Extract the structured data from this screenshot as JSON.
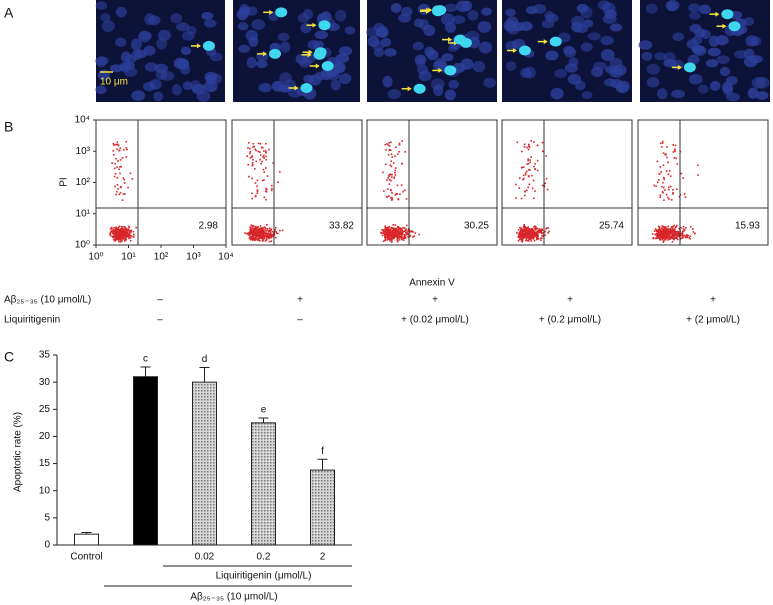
{
  "panel_a": {
    "label": "A",
    "scale_bar": "10 μm"
  },
  "panel_b": {
    "label": "B",
    "x_label": "Annexin V",
    "y_label": "PI",
    "log_scale": true,
    "xlim": [
      1,
      10000
    ],
    "ylim": [
      1,
      10000
    ],
    "xticks": [
      {
        "value": 1,
        "label": "10⁰"
      },
      {
        "value": 10,
        "label": "10¹"
      },
      {
        "value": 100,
        "label": "10²"
      },
      {
        "value": 1000,
        "label": "10³"
      },
      {
        "value": 10000,
        "label": "10⁴"
      }
    ],
    "yticks": [
      {
        "value": 1,
        "label": "10⁰"
      },
      {
        "value": 10,
        "label": "10¹"
      },
      {
        "value": 100,
        "label": "10²"
      },
      {
        "value": 1000,
        "label": "10³"
      },
      {
        "value": 10000,
        "label": "10⁴"
      }
    ],
    "quadrant_percentages": [
      2.98,
      33.82,
      30.25,
      25.74,
      15.93
    ]
  },
  "treatments": [
    {
      "name": "Aβ₂₅₋₃₅ (10 μmol/L)",
      "values": [
        "–",
        "+",
        "+",
        "+",
        "+"
      ]
    },
    {
      "name": "Liquiritigenin",
      "values": [
        "–",
        "–",
        "+ (0.02 μmol/L)",
        "+ (0.2 μmol/L)",
        "+ (2 μmol/L)"
      ]
    }
  ],
  "chart_data": {
    "type": "bar",
    "label": "C",
    "y_label": "Apoptotic rate (%)",
    "categories": [
      "Control",
      null,
      "0.02",
      "0.2",
      "2"
    ],
    "values": [
      2,
      31,
      30,
      22.5,
      13.8
    ],
    "errors": [
      0.3,
      1.8,
      2.7,
      0.9,
      2.0
    ],
    "annotations": [
      null,
      "c",
      "d",
      "e",
      "f"
    ],
    "colors": [
      "#ffffff",
      "#000000",
      "#b4b4b4",
      "#b4b4b4",
      "#b4b4b4"
    ],
    "ylim": [
      0,
      35
    ],
    "yticks": [
      0,
      5,
      10,
      15,
      20,
      25,
      30,
      35
    ],
    "group_labels": [
      "Liquiritigenin (μmol/L)",
      "Aβ₂₅₋₃₅ (10 μmol/L)"
    ]
  }
}
